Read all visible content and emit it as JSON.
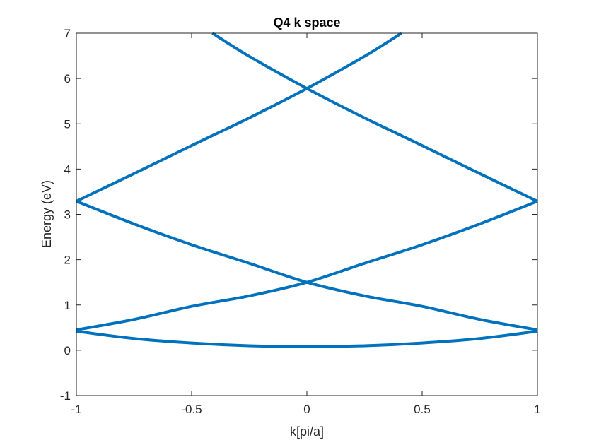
{
  "chart_data": {
    "type": "line",
    "title": "Q4 k space",
    "xlabel": "k[pi/a]",
    "ylabel": "Energy (eV)",
    "xlim": [
      -1,
      1
    ],
    "ylim": [
      -1,
      7
    ],
    "xticks": [
      -1,
      -0.5,
      0,
      0.5,
      1
    ],
    "xtick_labels": [
      "-1",
      "-0.5",
      "0",
      "0.5",
      "1"
    ],
    "yticks": [
      -1,
      0,
      1,
      2,
      3,
      4,
      5,
      6,
      7
    ],
    "ytick_labels": [
      "-1",
      "0",
      "1",
      "2",
      "3",
      "4",
      "5",
      "6",
      "7"
    ],
    "grid": false,
    "line_color": "#0072BD",
    "series": [
      {
        "x": [
          -1,
          -0.75,
          -0.5,
          -0.25,
          0,
          0.25,
          0.5,
          0.75,
          1
        ],
        "y": [
          0.42,
          0.26,
          0.16,
          0.1,
          0.08,
          0.1,
          0.16,
          0.26,
          0.42
        ]
      },
      {
        "x": [
          -1,
          -0.75,
          -0.5,
          -0.25,
          0,
          0.25,
          0.5,
          0.75,
          1
        ],
        "y": [
          0.45,
          0.68,
          0.97,
          1.2,
          1.5,
          1.92,
          2.33,
          2.79,
          3.29
        ]
      },
      {
        "x": [
          -1,
          -0.75,
          -0.5,
          -0.25,
          0,
          0.25,
          0.5,
          0.75,
          1
        ],
        "y": [
          3.29,
          2.79,
          2.33,
          1.92,
          1.5,
          1.2,
          0.97,
          0.68,
          0.45
        ]
      },
      {
        "x": [
          -1,
          -0.75,
          -0.5,
          -0.25,
          0,
          0.25,
          0.41
        ],
        "y": [
          3.29,
          3.9,
          4.52,
          5.13,
          5.78,
          6.49,
          7.0
        ]
      },
      {
        "x": [
          -0.41,
          -0.25,
          0,
          0.25,
          0.5,
          0.75,
          1
        ],
        "y": [
          7.0,
          6.49,
          5.78,
          5.13,
          4.52,
          3.9,
          3.29
        ]
      }
    ]
  }
}
